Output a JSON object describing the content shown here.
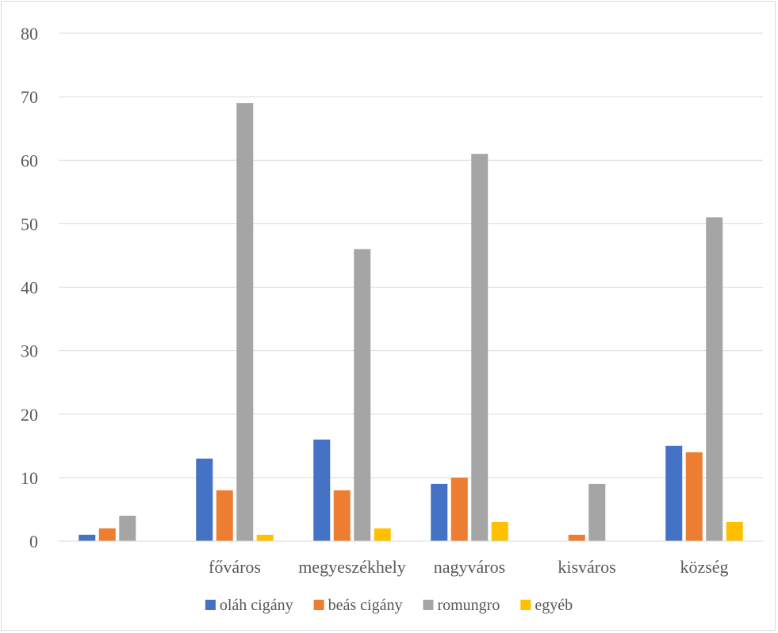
{
  "chart_data": {
    "type": "bar",
    "categories": [
      "",
      "főváros",
      "megyeszékhely",
      "nagyváros",
      "kisváros",
      "község"
    ],
    "series": [
      {
        "name": "oláh cigány",
        "color": "#4472c4",
        "values": [
          1,
          13,
          16,
          9,
          0,
          15
        ]
      },
      {
        "name": "beás cigány",
        "color": "#ed7d31",
        "values": [
          2,
          8,
          8,
          10,
          1,
          14
        ]
      },
      {
        "name": "romungro",
        "color": "#a5a5a5",
        "values": [
          4,
          69,
          46,
          61,
          9,
          51
        ]
      },
      {
        "name": "egyéb",
        "color": "#ffc000",
        "values": [
          0,
          1,
          2,
          3,
          0,
          3
        ]
      }
    ],
    "ylim": [
      0,
      80
    ],
    "yticks": [
      "0",
      "10",
      "20",
      "30",
      "40",
      "50",
      "60",
      "70",
      "80"
    ],
    "grid": true,
    "legend": "bottom"
  }
}
